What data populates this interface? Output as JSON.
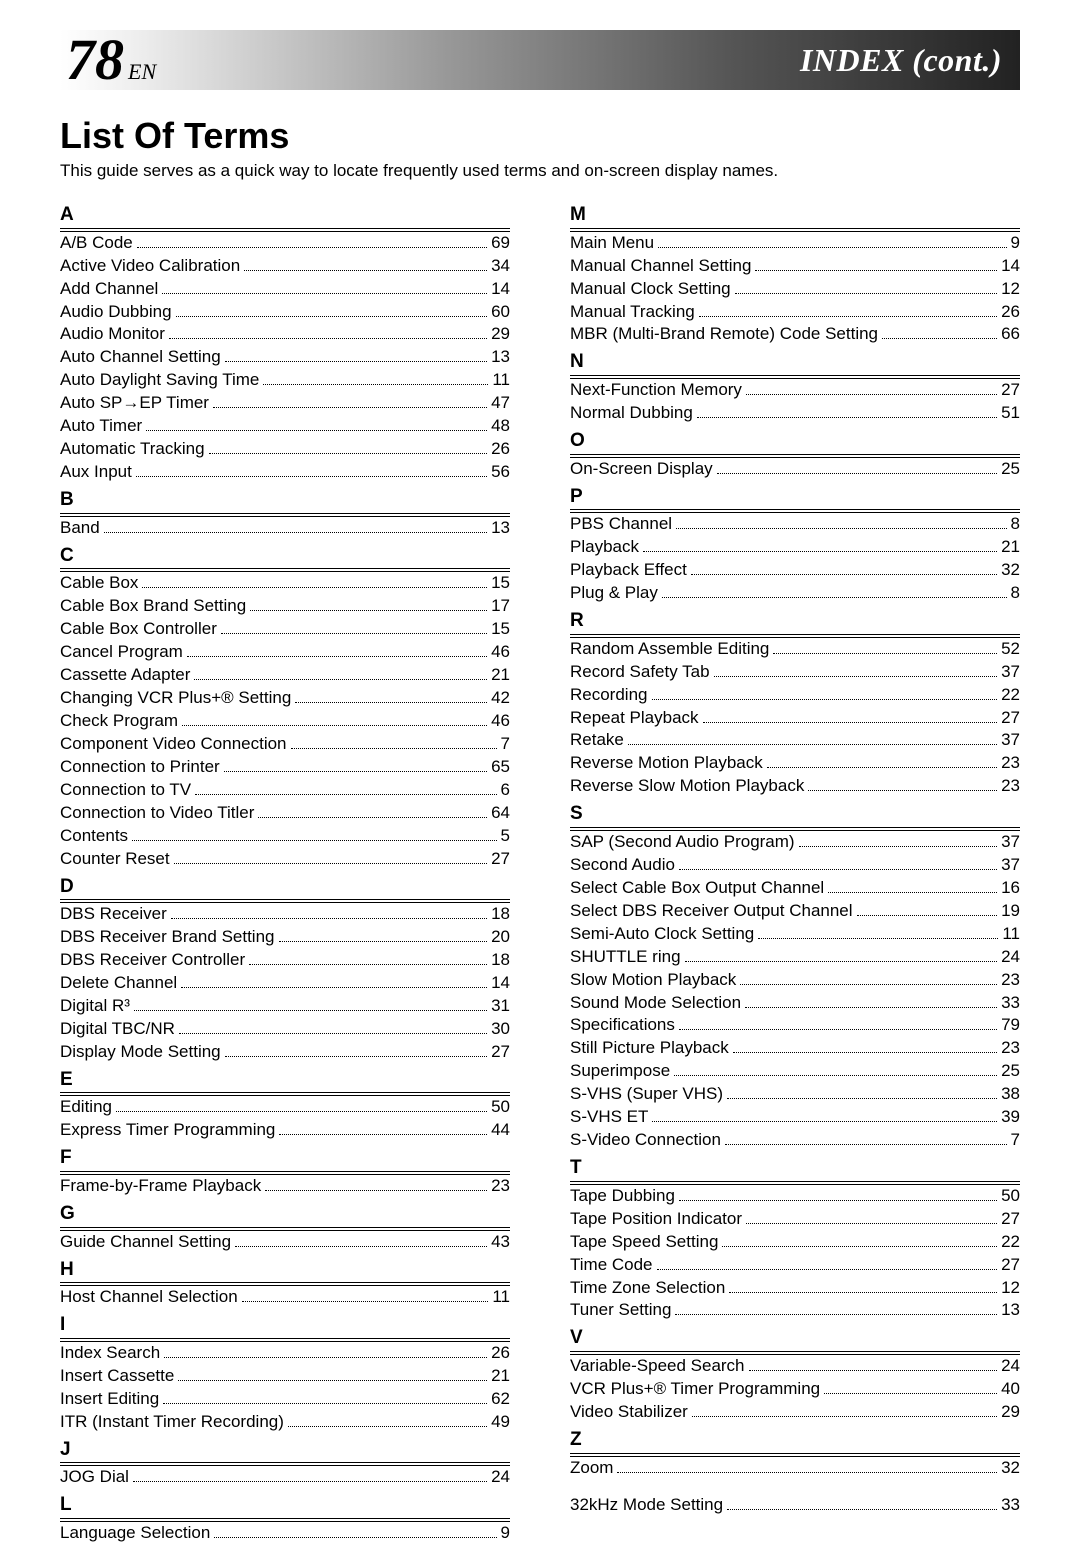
{
  "header": {
    "page_number": "78",
    "lang": "EN",
    "title": "INDEX (cont.)",
    "bg_gradient_from": "#ffffff",
    "bg_gradient_to": "#1a1a1a"
  },
  "title": "List Of Terms",
  "subtitle": "This guide serves as a quick way to locate frequently used terms and on-screen display names.",
  "typography": {
    "body_family": "Optima / Candara / sans-serif",
    "title_size_pt": 27,
    "body_size_pt": 13,
    "letter_head_size_pt": 14,
    "letter_head_weight": "bold"
  },
  "colors": {
    "text": "#000000",
    "background": "#ffffff",
    "rule": "#000000",
    "dot_leader": "#000000"
  },
  "left_sections": [
    {
      "letter": "A",
      "entries": [
        {
          "term": "A/B Code",
          "page": "69"
        },
        {
          "term": "Active Video Calibration",
          "page": "34"
        },
        {
          "term": "Add Channel",
          "page": "14"
        },
        {
          "term": "Audio Dubbing",
          "page": "60"
        },
        {
          "term": "Audio Monitor",
          "page": "29"
        },
        {
          "term": "Auto Channel Setting",
          "page": "13"
        },
        {
          "term": "Auto Daylight Saving Time",
          "page": "11"
        },
        {
          "term": "Auto SP→EP Timer",
          "page": "47"
        },
        {
          "term": "Auto Timer",
          "page": "48"
        },
        {
          "term": "Automatic Tracking",
          "page": "26"
        },
        {
          "term": "Aux Input",
          "page": "56"
        }
      ]
    },
    {
      "letter": "B",
      "entries": [
        {
          "term": "Band",
          "page": "13"
        }
      ]
    },
    {
      "letter": "C",
      "entries": [
        {
          "term": "Cable Box",
          "page": "15"
        },
        {
          "term": "Cable Box Brand Setting",
          "page": "17"
        },
        {
          "term": "Cable Box Controller",
          "page": "15"
        },
        {
          "term": "Cancel Program",
          "page": "46"
        },
        {
          "term": "Cassette Adapter",
          "page": "21"
        },
        {
          "term": "Changing VCR Plus+® Setting",
          "page": "42"
        },
        {
          "term": "Check Program",
          "page": "46"
        },
        {
          "term": "Component Video Connection",
          "page": "7"
        },
        {
          "term": "Connection to Printer",
          "page": "65"
        },
        {
          "term": "Connection to TV",
          "page": "6"
        },
        {
          "term": "Connection to Video Titler",
          "page": "64"
        },
        {
          "term": "Contents",
          "page": "5"
        },
        {
          "term": "Counter Reset",
          "page": "27"
        }
      ]
    },
    {
      "letter": "D",
      "entries": [
        {
          "term": "DBS Receiver",
          "page": "18"
        },
        {
          "term": "DBS Receiver Brand Setting",
          "page": "20"
        },
        {
          "term": "DBS Receiver Controller",
          "page": "18"
        },
        {
          "term": "Delete Channel",
          "page": "14"
        },
        {
          "term": "Digital R³",
          "page": "31"
        },
        {
          "term": "Digital TBC/NR",
          "page": "30"
        },
        {
          "term": "Display Mode Setting",
          "page": "27"
        }
      ]
    },
    {
      "letter": "E",
      "entries": [
        {
          "term": "Editing",
          "page": "50"
        },
        {
          "term": "Express Timer Programming",
          "page": "44"
        }
      ]
    },
    {
      "letter": "F",
      "entries": [
        {
          "term": "Frame-by-Frame Playback",
          "page": "23"
        }
      ]
    },
    {
      "letter": "G",
      "entries": [
        {
          "term": "Guide Channel Setting",
          "page": "43"
        }
      ]
    },
    {
      "letter": "H",
      "entries": [
        {
          "term": "Host Channel Selection",
          "page": "11"
        }
      ]
    },
    {
      "letter": "I",
      "entries": [
        {
          "term": "Index Search",
          "page": "26"
        },
        {
          "term": "Insert Cassette",
          "page": "21"
        },
        {
          "term": "Insert Editing",
          "page": "62"
        },
        {
          "term": "ITR (Instant Timer Recording)",
          "page": "49"
        }
      ]
    },
    {
      "letter": "J",
      "entries": [
        {
          "term": "JOG Dial",
          "page": "24"
        }
      ]
    },
    {
      "letter": "L",
      "entries": [
        {
          "term": "Language Selection",
          "page": "9"
        }
      ]
    }
  ],
  "right_sections": [
    {
      "letter": "M",
      "entries": [
        {
          "term": "Main Menu",
          "page": "9"
        },
        {
          "term": "Manual Channel Setting",
          "page": "14"
        },
        {
          "term": "Manual Clock Setting",
          "page": "12"
        },
        {
          "term": "Manual Tracking",
          "page": "26"
        },
        {
          "term": "MBR (Multi-Brand Remote) Code Setting",
          "page": "66"
        }
      ]
    },
    {
      "letter": "N",
      "entries": [
        {
          "term": "Next-Function Memory",
          "page": "27"
        },
        {
          "term": "Normal Dubbing",
          "page": "51"
        }
      ]
    },
    {
      "letter": "O",
      "entries": [
        {
          "term": "On-Screen Display",
          "page": "25"
        }
      ]
    },
    {
      "letter": "P",
      "entries": [
        {
          "term": "PBS Channel",
          "page": "8"
        },
        {
          "term": "Playback",
          "page": "21"
        },
        {
          "term": "Playback Effect",
          "page": "32"
        },
        {
          "term": "Plug & Play",
          "page": "8"
        }
      ]
    },
    {
      "letter": "R",
      "entries": [
        {
          "term": "Random Assemble Editing",
          "page": "52"
        },
        {
          "term": "Record Safety Tab",
          "page": "37"
        },
        {
          "term": "Recording",
          "page": "22"
        },
        {
          "term": "Repeat Playback",
          "page": "27"
        },
        {
          "term": "Retake",
          "page": "37"
        },
        {
          "term": "Reverse Motion Playback",
          "page": "23"
        },
        {
          "term": "Reverse Slow Motion Playback",
          "page": "23"
        }
      ]
    },
    {
      "letter": "S",
      "entries": [
        {
          "term": "SAP (Second Audio Program)",
          "page": "37"
        },
        {
          "term": "Second Audio",
          "page": "37"
        },
        {
          "term": "Select Cable Box Output Channel",
          "page": "16"
        },
        {
          "term": "Select DBS Receiver Output Channel",
          "page": "19"
        },
        {
          "term": "Semi-Auto Clock Setting",
          "page": "11"
        },
        {
          "term": "SHUTTLE ring",
          "page": "24"
        },
        {
          "term": "Slow Motion Playback",
          "page": "23"
        },
        {
          "term": "Sound Mode Selection",
          "page": "33"
        },
        {
          "term": "Specifications",
          "page": "79"
        },
        {
          "term": "Still Picture Playback",
          "page": "23"
        },
        {
          "term": "Superimpose",
          "page": "25"
        },
        {
          "term": "S-VHS (Super VHS)",
          "page": "38"
        },
        {
          "term": "S-VHS ET",
          "page": "39"
        },
        {
          "term": "S-Video Connection",
          "page": "7"
        }
      ]
    },
    {
      "letter": "T",
      "entries": [
        {
          "term": "Tape Dubbing",
          "page": "50"
        },
        {
          "term": "Tape Position Indicator",
          "page": "27"
        },
        {
          "term": "Tape Speed Setting",
          "page": "22"
        },
        {
          "term": "Time Code",
          "page": "27"
        },
        {
          "term": "Time Zone Selection",
          "page": "12"
        },
        {
          "term": "Tuner Setting",
          "page": "13"
        }
      ]
    },
    {
      "letter": "V",
      "entries": [
        {
          "term": "Variable-Speed Search",
          "page": "24"
        },
        {
          "term": "VCR Plus+® Timer Programming",
          "page": "40"
        },
        {
          "term": "Video Stabilizer",
          "page": "29"
        }
      ]
    },
    {
      "letter": "Z",
      "entries": [
        {
          "term": "Zoom",
          "page": "32"
        }
      ]
    },
    {
      "letter": "",
      "entries": [
        {
          "term": "32kHz Mode Setting",
          "page": "33"
        }
      ]
    }
  ]
}
